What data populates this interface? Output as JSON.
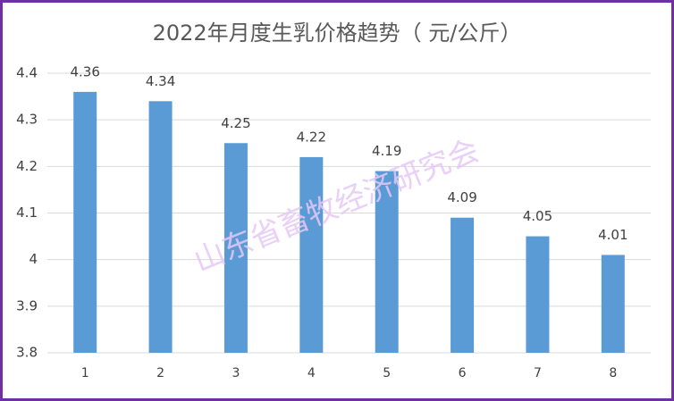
{
  "chart_data": {
    "type": "bar",
    "title": "2022年月度生乳价格趋势（ 元/公斤）",
    "watermark": "山东省畜牧经济研究会",
    "categories": [
      "1",
      "2",
      "3",
      "4",
      "5",
      "6",
      "7",
      "8"
    ],
    "values": [
      4.36,
      4.34,
      4.25,
      4.22,
      4.19,
      4.09,
      4.05,
      4.01
    ],
    "color": "#5b9bd5",
    "ylim": [
      3.8,
      4.4
    ],
    "yticks": [
      3.8,
      3.9,
      4,
      4.1,
      4.2,
      4.3,
      4.4
    ],
    "grid": true
  }
}
